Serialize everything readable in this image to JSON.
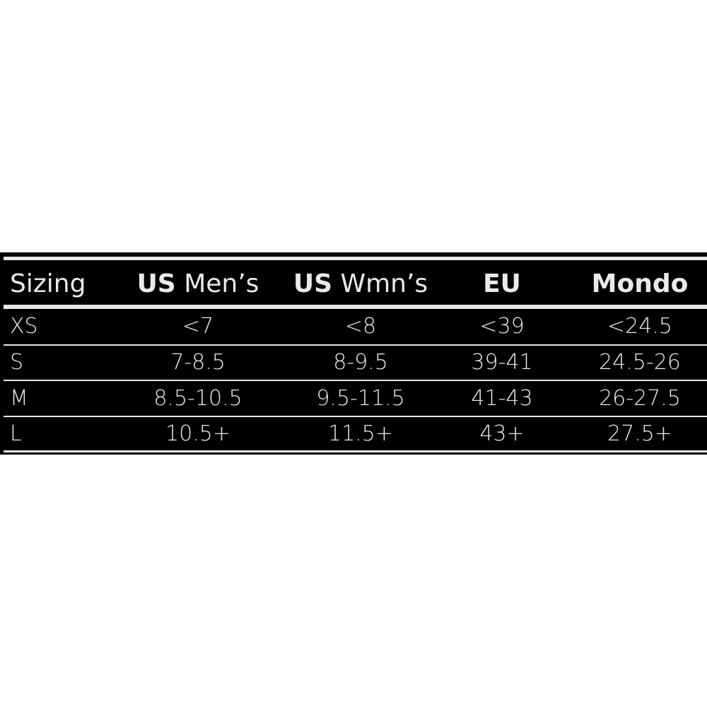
{
  "table": {
    "header": {
      "sizing": "Sizing",
      "us_men_bold": "US",
      "us_men_rest": "Men’s",
      "us_wmn_bold": "US",
      "us_wmn_rest": "Wmn’s",
      "eu": "EU",
      "mondo": "Mondo"
    },
    "rows": [
      {
        "size": "XS",
        "us_men": "<7",
        "us_wmn": "<8",
        "eu": "<39",
        "mondo": "<24.5"
      },
      {
        "size": "S",
        "us_men": "7-8.5",
        "us_wmn": "8-9.5",
        "eu": "39-41",
        "mondo": "24.5-26"
      },
      {
        "size": "M",
        "us_men": "8.5-10.5",
        "us_wmn": "9.5-11.5",
        "eu": "41-43",
        "mondo": "26-27.5"
      },
      {
        "size": "L",
        "us_men": "10.5+",
        "us_wmn": "11.5+",
        "eu": "43+",
        "mondo": "27.5+"
      }
    ]
  },
  "colors": {
    "background": "#000000",
    "text": "#eaeaea",
    "rules": "#e8e8e8"
  }
}
